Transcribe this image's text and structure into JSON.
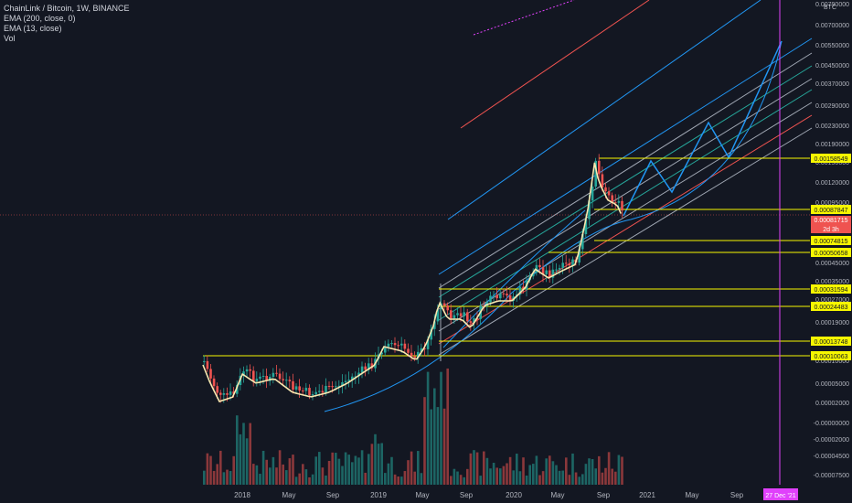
{
  "legend": {
    "symbol": "ChainLink / Bitcoin, 1W, BINANCE",
    "ema200": "EMA (200, close, 0)",
    "ema13": "EMA (13, close)",
    "vol": "Vol"
  },
  "currency": "BTC",
  "colors": {
    "background": "#131722",
    "up": "#26a69a",
    "down": "#ef5350",
    "highlight": "#f7f700",
    "current_price": "#ef5350",
    "projection": "#2196f3",
    "date_marker": "#e040fb",
    "ema13": "#f9e8b0"
  },
  "price_axis": {
    "ticks": [
      "0.00790000",
      "0.00700000",
      "0.00550000",
      "0.00450000",
      "0.00370000",
      "0.00290000",
      "0.00230000",
      "0.00190000",
      "0.00150000",
      "0.00120000",
      "0.00095000",
      "0.00045000",
      "0.00035000",
      "0.00027000",
      "0.00019000",
      "0.00010000",
      "0.00005000",
      "0.00002000",
      "-0.00000000",
      "-0.00002000",
      "-0.00004500",
      "-0.00007500"
    ],
    "highlighted": [
      "0.00158549",
      "0.00087847",
      "0.00074815",
      "0.00050658",
      "0.00031594",
      "0.00024483",
      "0.00013748",
      "0.00010063"
    ],
    "current_price": "0.00081715",
    "countdown": "2d 3h"
  },
  "time_axis": {
    "labels": [
      "2018",
      "May",
      "Sep",
      "2019",
      "May",
      "Sep",
      "2020",
      "May",
      "Sep",
      "2021",
      "May",
      "Sep"
    ],
    "marker": "27 Dec '21"
  }
}
